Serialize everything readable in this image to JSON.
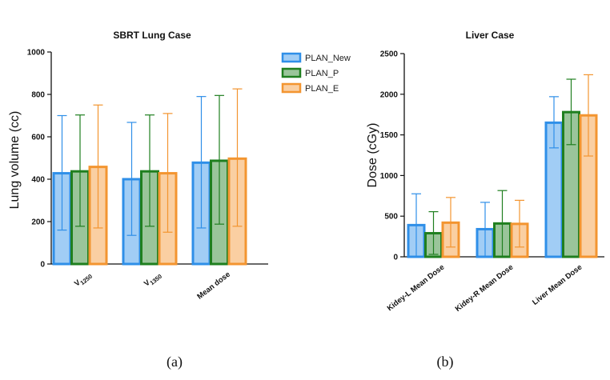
{
  "colors": {
    "PLAN_New": "#2f8fe8",
    "PLAN_P": "#1f7f1f",
    "PLAN_E": "#f39530"
  },
  "legend": [
    "PLAN_New",
    "PLAN_P",
    "PLAN_E"
  ],
  "captions": {
    "a": "(a)",
    "b": "(b)"
  },
  "chart_data": [
    {
      "type": "bar",
      "title": "SBRT Lung Case",
      "ylabel": "Lung volume (cc)",
      "xlabel": "",
      "ylim": [
        0,
        1000
      ],
      "yticks": [
        0,
        200,
        400,
        600,
        800,
        1000
      ],
      "categories": [
        {
          "main": "V",
          "sub": "1250"
        },
        {
          "main": "V",
          "sub": "1350"
        },
        {
          "main": "Mean dose",
          "sub": ""
        }
      ],
      "series": [
        {
          "name": "PLAN_New",
          "values": [
            428,
            400,
            478
          ],
          "err_low": [
            160,
            135,
            170
          ],
          "err_high": [
            700,
            668,
            790
          ]
        },
        {
          "name": "PLAN_P",
          "values": [
            437,
            437,
            487
          ],
          "err_low": [
            178,
            178,
            188
          ],
          "err_high": [
            703,
            703,
            795
          ]
        },
        {
          "name": "PLAN_E",
          "values": [
            458,
            428,
            497
          ],
          "err_low": [
            170,
            150,
            178
          ],
          "err_high": [
            750,
            710,
            826
          ]
        }
      ],
      "grid": false,
      "legend_position": "right"
    },
    {
      "type": "bar",
      "title": "Liver Case",
      "ylabel": "Dose (cGy)",
      "xlabel": "",
      "ylim": [
        0,
        2500
      ],
      "yticks": [
        0,
        500,
        1000,
        1500,
        2000,
        2500
      ],
      "categories": [
        "Kidey-L Mean Dose",
        "Kidey-R Mean Dose",
        "Liver Mean Dose"
      ],
      "series": [
        {
          "name": "PLAN_New",
          "values": [
            390,
            340,
            1650
          ],
          "err_low": [
            0,
            0,
            1340
          ],
          "err_high": [
            775,
            670,
            1970
          ]
        },
        {
          "name": "PLAN_P",
          "values": [
            290,
            410,
            1780
          ],
          "err_low": [
            30,
            0,
            1380
          ],
          "err_high": [
            555,
            815,
            2185
          ]
        },
        {
          "name": "PLAN_E",
          "values": [
            420,
            405,
            1740
          ],
          "err_low": [
            120,
            120,
            1240
          ],
          "err_high": [
            730,
            695,
            2240
          ]
        }
      ],
      "grid": false,
      "legend_position": "none"
    }
  ]
}
